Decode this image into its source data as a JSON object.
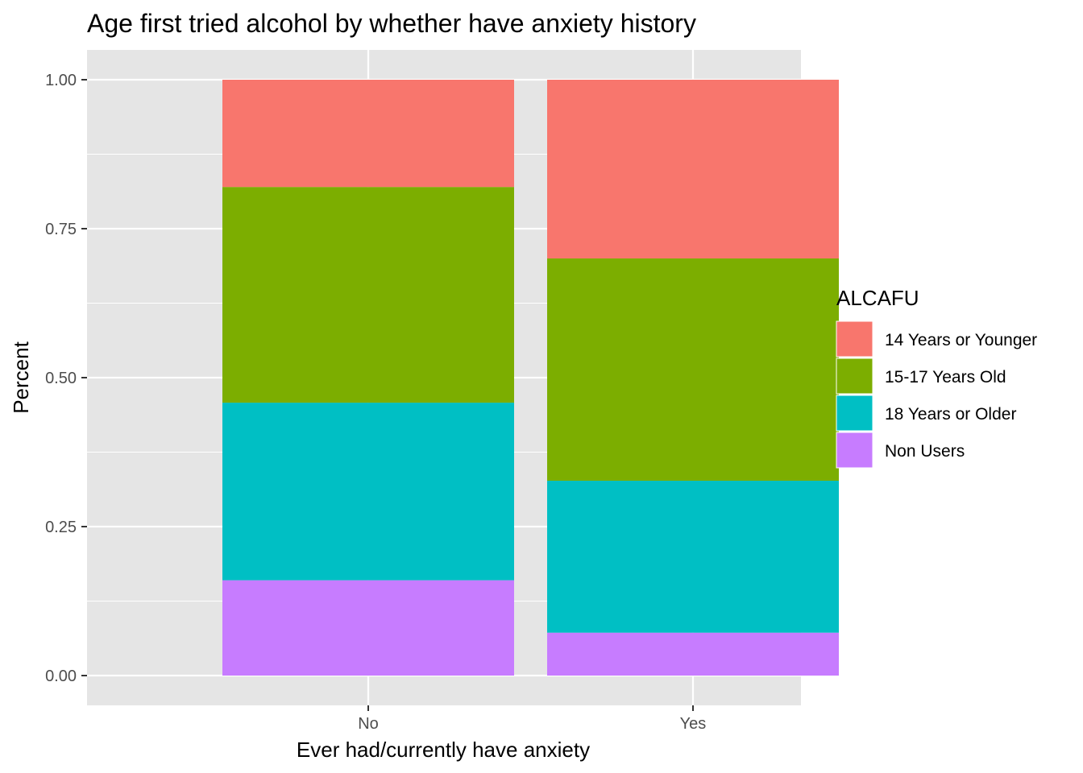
{
  "chart_data": {
    "type": "bar",
    "stacked": true,
    "title": "Age first tried alcohol by whether have anxiety history",
    "xlabel": "Ever had/currently have anxiety",
    "ylabel": "Percent",
    "categories": [
      "No",
      "Yes"
    ],
    "ylim": [
      -0.05,
      1.05
    ],
    "yticks": [
      "0.00",
      "0.25",
      "0.50",
      "0.75",
      "1.00"
    ],
    "grid": true,
    "legend_position": "right",
    "legend_title": "ALCAFU",
    "series": [
      {
        "name": "14 Years or Younger",
        "color": "#F8766D",
        "values": [
          0.18,
          0.3
        ]
      },
      {
        "name": "15-17 Years Old",
        "color": "#7CAE00",
        "values": [
          0.362,
          0.373
        ]
      },
      {
        "name": "18 Years or Older",
        "color": "#00BFC4",
        "values": [
          0.298,
          0.255
        ]
      },
      {
        "name": "Non Users",
        "color": "#C77CFF",
        "values": [
          0.16,
          0.072
        ]
      }
    ]
  }
}
